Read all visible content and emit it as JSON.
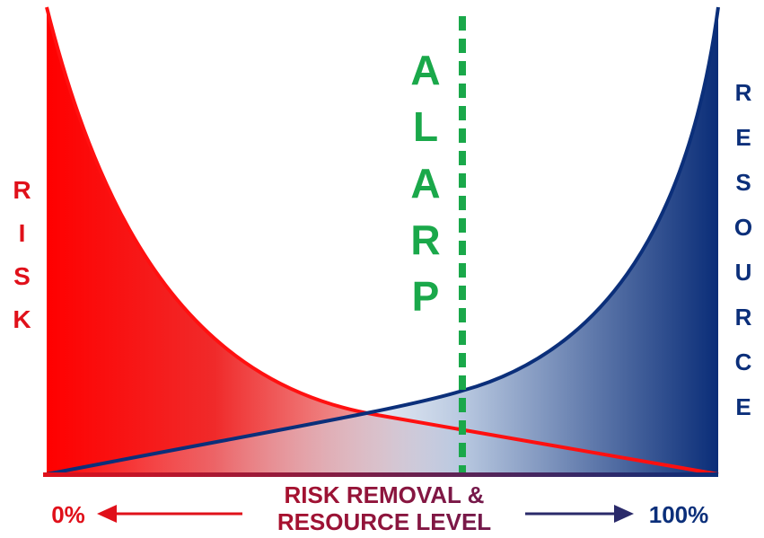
{
  "labels": {
    "risk": "RISK",
    "resource": "RESOURCE",
    "alarp": "ALARP"
  },
  "axis": {
    "min_label": "0%",
    "max_label": "100%",
    "title_line1": "RISK REMOVAL &",
    "title_line2": "RESOURCE LEVEL"
  }
}
